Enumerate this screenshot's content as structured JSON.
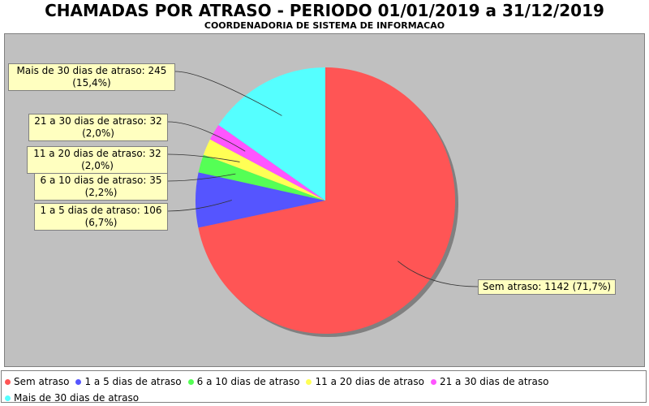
{
  "chart_data": {
    "type": "pie",
    "title": "CHAMADAS POR ATRASO - PERIODO 01/01/2019 a 31/12/2019",
    "subtitle": "COORDENADORIA DE SISTEMA DE INFORMACAO",
    "slices": [
      {
        "name": "Sem atraso",
        "value": 1142,
        "percent": "71,7%",
        "color": "#ff5555",
        "label": "Sem atraso: 1142 (71,7%)",
        "label_line1": "Sem atraso: 1142 (71,7%)",
        "label_line2": ""
      },
      {
        "name": "1 a 5 dias de atraso",
        "value": 106,
        "percent": "6,7%",
        "color": "#5555ff",
        "label_line1": "1 a 5 dias de atraso: 106",
        "label_line2": "(6,7%)"
      },
      {
        "name": "6 a 10 dias de atraso",
        "value": 35,
        "percent": "2,2%",
        "color": "#55ff55",
        "label_line1": "6 a 10 dias de atraso: 35",
        "label_line2": "(2,2%)"
      },
      {
        "name": "11 a 20 dias de atraso",
        "value": 32,
        "percent": "2,0%",
        "color": "#ffff55",
        "label_line1": "11 a 20 dias de atraso: 32",
        "label_line2": "(2,0%)"
      },
      {
        "name": "21 a 30 dias de atraso",
        "value": 32,
        "percent": "2,0%",
        "color": "#ff55ff",
        "label_line1": "21 a 30 dias de atraso: 32",
        "label_line2": "(2,0%)"
      },
      {
        "name": "Mais de 30 dias de atraso",
        "value": 245,
        "percent": "15,4%",
        "color": "#55ffff",
        "label_line1": "Mais de 30 dias de atraso: 245",
        "label_line2": "(15,4%)"
      }
    ],
    "legend_position": "bottom",
    "background_color": "#c0c0c0"
  }
}
